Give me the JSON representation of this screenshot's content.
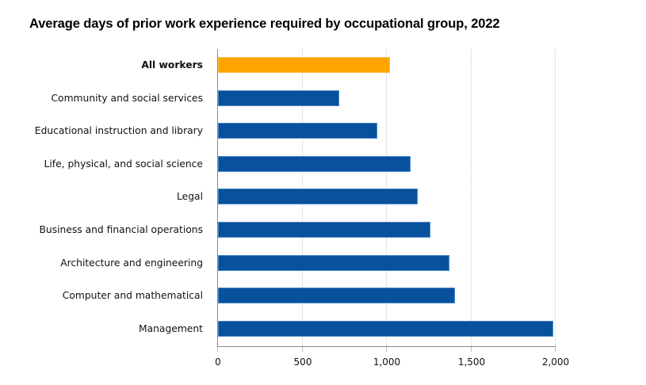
{
  "chart_data": {
    "type": "bar",
    "orientation": "horizontal",
    "title": "Average days of prior work experience required by occupational group, 2022",
    "xlabel": "",
    "ylabel": "",
    "xlim": [
      0,
      2000
    ],
    "xticks": [
      0,
      500,
      1000,
      1500,
      2000
    ],
    "xtick_labels": [
      "0",
      "500",
      "1,000",
      "1,500",
      "2,000"
    ],
    "grid": {
      "vertical": true,
      "style": "dotted"
    },
    "legend": null,
    "categories": [
      "All workers",
      "Community and social services",
      "Educational instruction and library",
      "Life, physical, and social science",
      "Legal",
      "Business and financial operations",
      "Architecture and engineering",
      "Computer and mathematical",
      "Management"
    ],
    "values": [
      1019,
      718,
      944,
      1141,
      1183,
      1258,
      1371,
      1404,
      1986
    ],
    "highlight": "All workers",
    "colors": {
      "default": "#08519c",
      "highlight": "#ffa500"
    }
  },
  "header": {
    "title": "Average days of prior work experience required by occupational group, 2022"
  },
  "axis": {
    "ticks": [
      "0",
      "500",
      "1,000",
      "1,500",
      "2,000"
    ]
  },
  "rows": [
    {
      "label": "All workers"
    },
    {
      "label": "Community and social services"
    },
    {
      "label": "Educational instruction and library"
    },
    {
      "label": "Life, physical, and social science"
    },
    {
      "label": "Legal"
    },
    {
      "label": "Business and financial operations"
    },
    {
      "label": "Architecture and engineering"
    },
    {
      "label": "Computer and mathematical"
    },
    {
      "label": "Management"
    }
  ]
}
